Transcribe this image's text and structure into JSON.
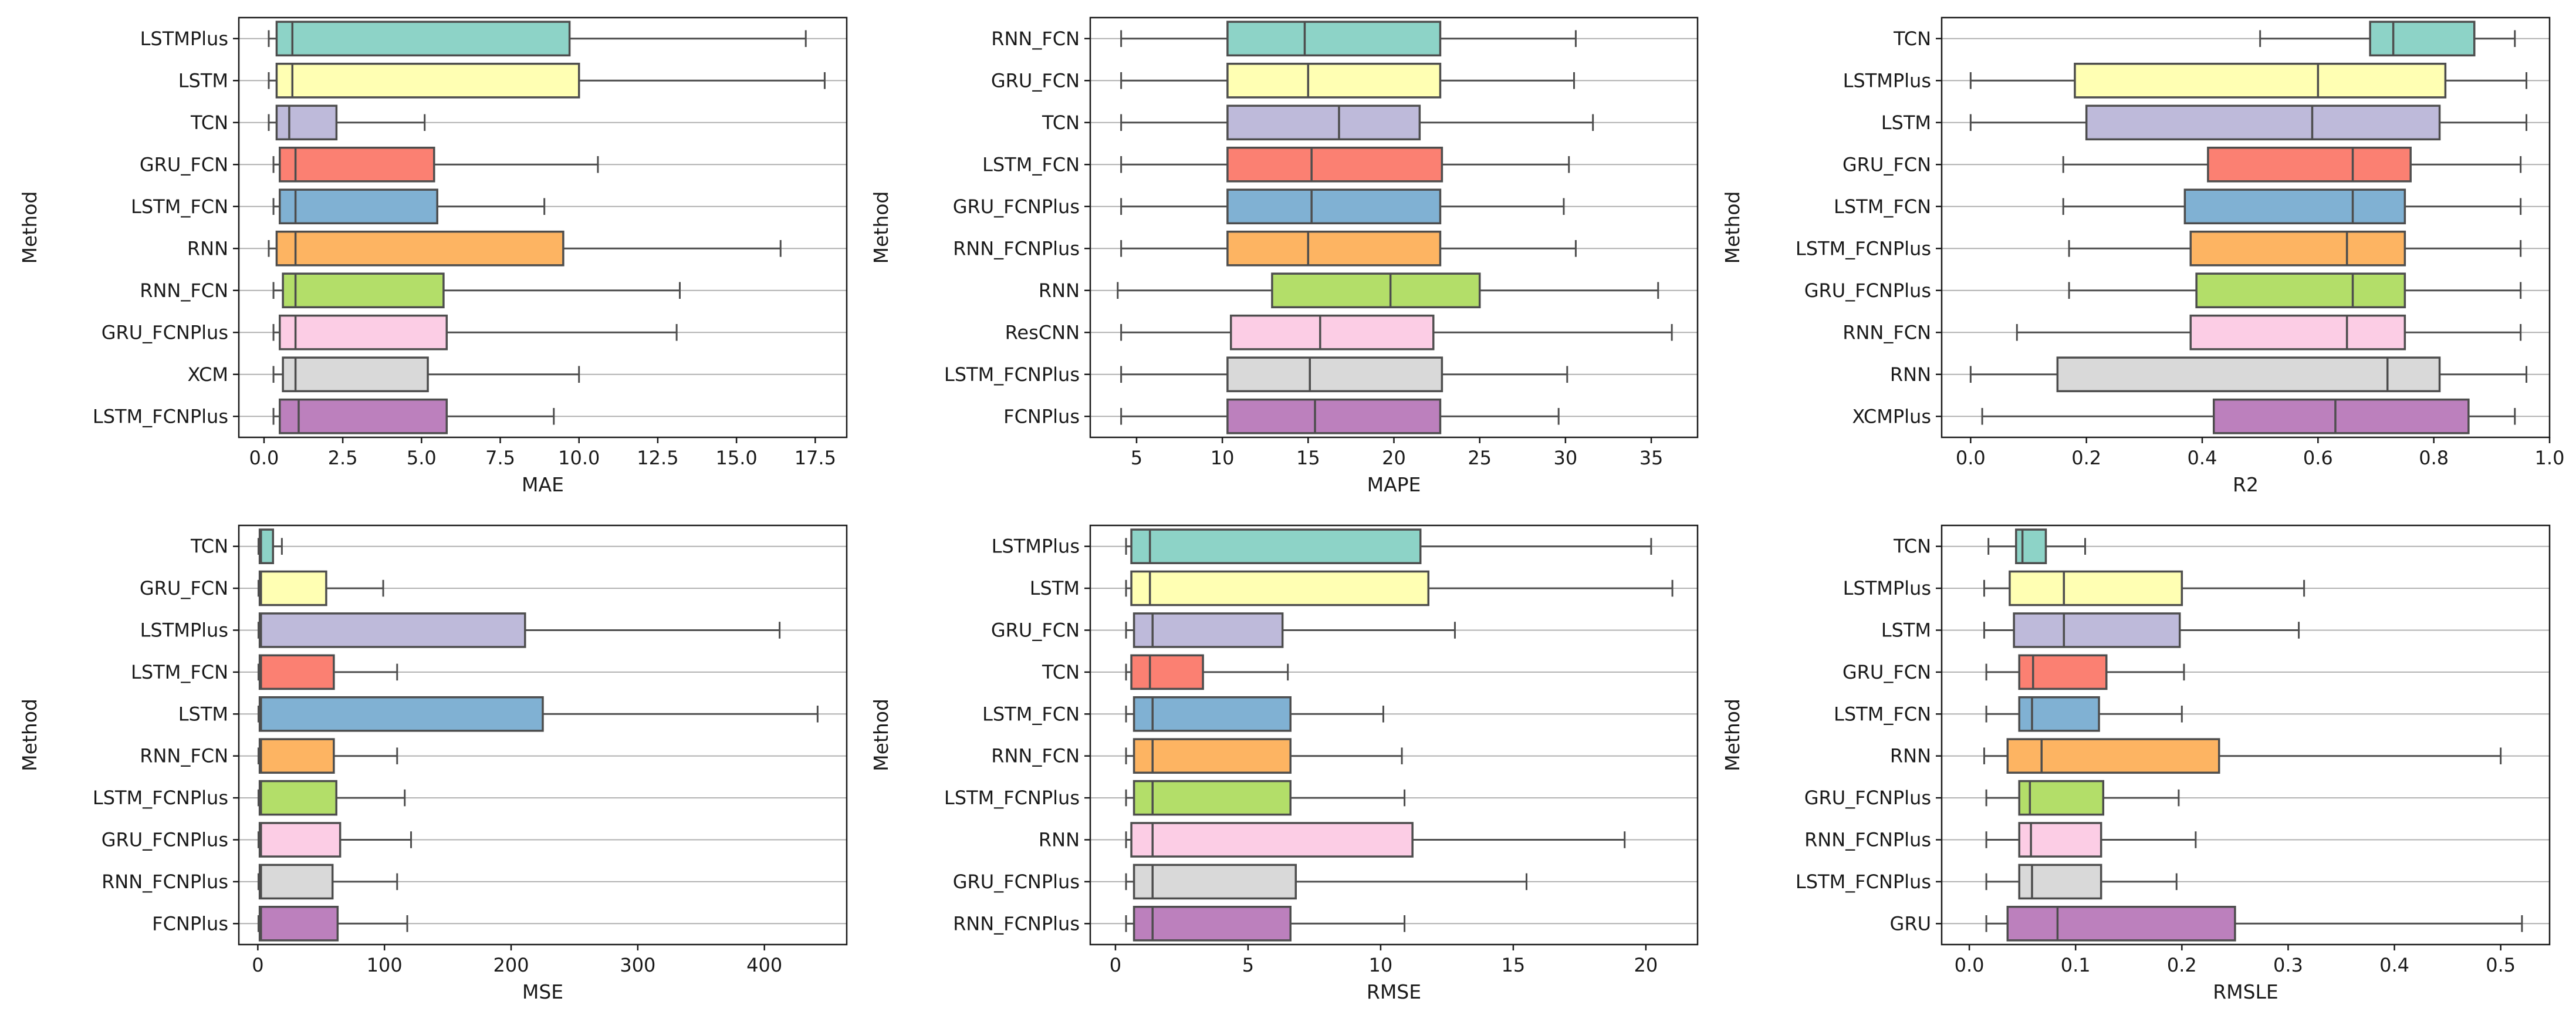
{
  "colors": [
    "#8dd3c7",
    "#ffffb3",
    "#bebada",
    "#fb8072",
    "#80b1d3",
    "#fdb462",
    "#b3de69",
    "#fccde5",
    "#d9d9d9",
    "#bc80bd"
  ],
  "chart_data": [
    {
      "type": "boxplot",
      "orientation": "horizontal",
      "position": "top-left",
      "xlabel": "MAE",
      "ylabel": "Method",
      "xlim": [
        -0.8,
        18.5
      ],
      "xticks": [
        0.0,
        2.5,
        5.0,
        7.5,
        10.0,
        12.5,
        15.0,
        17.5
      ],
      "xtick_labels": [
        "0.0",
        "2.5",
        "5.0",
        "7.5",
        "10.0",
        "12.5",
        "15.0",
        "17.5"
      ],
      "grid_y": true,
      "categories": [
        "LSTMPlus",
        "LSTM",
        "TCN",
        "GRU_FCN",
        "LSTM_FCN",
        "RNN",
        "RNN_FCN",
        "GRU_FCNPlus",
        "XCM",
        "LSTM_FCNPlus"
      ],
      "boxes": [
        {
          "whislo": 0.15,
          "q1": 0.4,
          "med": 0.9,
          "q3": 9.7,
          "whishi": 17.2
        },
        {
          "whislo": 0.15,
          "q1": 0.4,
          "med": 0.9,
          "q3": 10.0,
          "whishi": 17.8
        },
        {
          "whislo": 0.15,
          "q1": 0.4,
          "med": 0.8,
          "q3": 2.3,
          "whishi": 5.1
        },
        {
          "whislo": 0.3,
          "q1": 0.5,
          "med": 1.0,
          "q3": 5.4,
          "whishi": 10.6
        },
        {
          "whislo": 0.3,
          "q1": 0.5,
          "med": 1.0,
          "q3": 5.5,
          "whishi": 8.9
        },
        {
          "whislo": 0.15,
          "q1": 0.4,
          "med": 1.0,
          "q3": 9.5,
          "whishi": 16.4
        },
        {
          "whislo": 0.3,
          "q1": 0.6,
          "med": 1.0,
          "q3": 5.7,
          "whishi": 13.2
        },
        {
          "whislo": 0.3,
          "q1": 0.5,
          "med": 1.0,
          "q3": 5.8,
          "whishi": 13.1
        },
        {
          "whislo": 0.3,
          "q1": 0.6,
          "med": 1.0,
          "q3": 5.2,
          "whishi": 10.0
        },
        {
          "whislo": 0.3,
          "q1": 0.5,
          "med": 1.1,
          "q3": 5.8,
          "whishi": 9.2
        }
      ]
    },
    {
      "type": "boxplot",
      "orientation": "horizontal",
      "position": "top-center",
      "xlabel": "MAPE",
      "ylabel": "Method",
      "xlim": [
        2.3,
        37.7
      ],
      "xticks": [
        5,
        10,
        15,
        20,
        25,
        30,
        35
      ],
      "xtick_labels": [
        "5",
        "10",
        "15",
        "20",
        "25",
        "30",
        "35"
      ],
      "grid_y": true,
      "categories": [
        "RNN_FCN",
        "GRU_FCN",
        "TCN",
        "LSTM_FCN",
        "GRU_FCNPlus",
        "RNN_FCNPlus",
        "RNN",
        "ResCNN",
        "LSTM_FCNPlus",
        "FCNPlus"
      ],
      "boxes": [
        {
          "whislo": 4.1,
          "q1": 10.3,
          "med": 14.8,
          "q3": 22.7,
          "whishi": 30.6
        },
        {
          "whislo": 4.1,
          "q1": 10.3,
          "med": 15.0,
          "q3": 22.7,
          "whishi": 30.5
        },
        {
          "whislo": 4.1,
          "q1": 10.3,
          "med": 16.8,
          "q3": 21.5,
          "whishi": 31.6
        },
        {
          "whislo": 4.1,
          "q1": 10.3,
          "med": 15.2,
          "q3": 22.8,
          "whishi": 30.2
        },
        {
          "whislo": 4.1,
          "q1": 10.3,
          "med": 15.2,
          "q3": 22.7,
          "whishi": 29.9
        },
        {
          "whislo": 4.1,
          "q1": 10.3,
          "med": 15.0,
          "q3": 22.7,
          "whishi": 30.6
        },
        {
          "whislo": 3.9,
          "q1": 12.9,
          "med": 19.8,
          "q3": 25.0,
          "whishi": 35.4
        },
        {
          "whislo": 4.1,
          "q1": 10.5,
          "med": 15.7,
          "q3": 22.3,
          "whishi": 36.2
        },
        {
          "whislo": 4.1,
          "q1": 10.3,
          "med": 15.1,
          "q3": 22.8,
          "whishi": 30.1
        },
        {
          "whislo": 4.1,
          "q1": 10.3,
          "med": 15.4,
          "q3": 22.7,
          "whishi": 29.6
        }
      ]
    },
    {
      "type": "boxplot",
      "orientation": "horizontal",
      "position": "top-right",
      "xlabel": "R2",
      "ylabel": "Method",
      "xlim": [
        -0.05,
        1.0
      ],
      "xticks": [
        0.0,
        0.2,
        0.4,
        0.6,
        0.8,
        1.0
      ],
      "xtick_labels": [
        "0.0",
        "0.2",
        "0.4",
        "0.6",
        "0.8",
        "1.0"
      ],
      "grid_y": true,
      "categories": [
        "TCN",
        "LSTMPlus",
        "LSTM",
        "GRU_FCN",
        "LSTM_FCN",
        "LSTM_FCNPlus",
        "GRU_FCNPlus",
        "RNN_FCN",
        "RNN",
        "XCMPlus"
      ],
      "boxes": [
        {
          "whislo": 0.5,
          "q1": 0.69,
          "med": 0.73,
          "q3": 0.87,
          "whishi": 0.94
        },
        {
          "whislo": 0.0,
          "q1": 0.18,
          "med": 0.6,
          "q3": 0.82,
          "whishi": 0.96
        },
        {
          "whislo": 0.0,
          "q1": 0.2,
          "med": 0.59,
          "q3": 0.81,
          "whishi": 0.96
        },
        {
          "whislo": 0.16,
          "q1": 0.41,
          "med": 0.66,
          "q3": 0.76,
          "whishi": 0.95
        },
        {
          "whislo": 0.16,
          "q1": 0.37,
          "med": 0.66,
          "q3": 0.75,
          "whishi": 0.95
        },
        {
          "whislo": 0.17,
          "q1": 0.38,
          "med": 0.65,
          "q3": 0.75,
          "whishi": 0.95
        },
        {
          "whislo": 0.17,
          "q1": 0.39,
          "med": 0.66,
          "q3": 0.75,
          "whishi": 0.95
        },
        {
          "whislo": 0.08,
          "q1": 0.38,
          "med": 0.65,
          "q3": 0.75,
          "whishi": 0.95
        },
        {
          "whislo": 0.0,
          "q1": 0.15,
          "med": 0.72,
          "q3": 0.81,
          "whishi": 0.96
        },
        {
          "whislo": 0.02,
          "q1": 0.42,
          "med": 0.63,
          "q3": 0.86,
          "whishi": 0.94
        }
      ]
    },
    {
      "type": "boxplot",
      "orientation": "horizontal",
      "position": "bottom-left",
      "xlabel": "MSE",
      "ylabel": "Method",
      "xlim": [
        -15,
        465
      ],
      "xticks": [
        0,
        100,
        200,
        300,
        400
      ],
      "xtick_labels": [
        "0",
        "100",
        "200",
        "300",
        "400"
      ],
      "grid_y": true,
      "categories": [
        "TCN",
        "GRU_FCN",
        "LSTMPlus",
        "LSTM_FCN",
        "LSTM",
        "RNN_FCN",
        "LSTM_FCNPlus",
        "GRU_FCNPlus",
        "RNN_FCNPlus",
        "FCNPlus"
      ],
      "boxes": [
        {
          "whislo": 0.5,
          "q1": 1.5,
          "med": 2.5,
          "q3": 12.0,
          "whishi": 19.0
        },
        {
          "whislo": 0.5,
          "q1": 1.5,
          "med": 2.5,
          "q3": 54.0,
          "whishi": 99.0
        },
        {
          "whislo": 0.5,
          "q1": 1.5,
          "med": 2.5,
          "q3": 211.0,
          "whishi": 412.0
        },
        {
          "whislo": 0.5,
          "q1": 1.5,
          "med": 2.5,
          "q3": 60.0,
          "whishi": 110.0
        },
        {
          "whislo": 0.5,
          "q1": 1.5,
          "med": 2.5,
          "q3": 225.0,
          "whishi": 442.0
        },
        {
          "whislo": 0.5,
          "q1": 1.5,
          "med": 2.5,
          "q3": 60.0,
          "whishi": 110.0
        },
        {
          "whislo": 0.5,
          "q1": 1.5,
          "med": 2.5,
          "q3": 62.0,
          "whishi": 116.0
        },
        {
          "whislo": 0.5,
          "q1": 1.5,
          "med": 2.5,
          "q3": 65.0,
          "whishi": 121.0
        },
        {
          "whislo": 0.5,
          "q1": 1.5,
          "med": 2.5,
          "q3": 59.0,
          "whishi": 110.0
        },
        {
          "whislo": 0.5,
          "q1": 1.5,
          "med": 2.5,
          "q3": 63.0,
          "whishi": 118.0
        }
      ]
    },
    {
      "type": "boxplot",
      "orientation": "horizontal",
      "position": "bottom-center",
      "xlabel": "RMSE",
      "ylabel": "Method",
      "xlim": [
        -0.95,
        21.95
      ],
      "xticks": [
        0,
        5,
        10,
        15,
        20
      ],
      "xtick_labels": [
        "0",
        "5",
        "10",
        "15",
        "20"
      ],
      "grid_y": true,
      "categories": [
        "LSTMPlus",
        "LSTM",
        "GRU_FCN",
        "TCN",
        "LSTM_FCN",
        "RNN_FCN",
        "LSTM_FCNPlus",
        "RNN",
        "GRU_FCNPlus",
        "RNN_FCNPlus"
      ],
      "boxes": [
        {
          "whislo": 0.4,
          "q1": 0.6,
          "med": 1.3,
          "q3": 11.5,
          "whishi": 20.2
        },
        {
          "whislo": 0.4,
          "q1": 0.6,
          "med": 1.3,
          "q3": 11.8,
          "whishi": 21.0
        },
        {
          "whislo": 0.4,
          "q1": 0.7,
          "med": 1.4,
          "q3": 6.3,
          "whishi": 12.8
        },
        {
          "whislo": 0.4,
          "q1": 0.6,
          "med": 1.3,
          "q3": 3.3,
          "whishi": 6.5
        },
        {
          "whislo": 0.4,
          "q1": 0.7,
          "med": 1.4,
          "q3": 6.6,
          "whishi": 10.1
        },
        {
          "whislo": 0.4,
          "q1": 0.7,
          "med": 1.4,
          "q3": 6.6,
          "whishi": 10.8
        },
        {
          "whislo": 0.4,
          "q1": 0.7,
          "med": 1.4,
          "q3": 6.6,
          "whishi": 10.9
        },
        {
          "whislo": 0.4,
          "q1": 0.6,
          "med": 1.4,
          "q3": 11.2,
          "whishi": 19.2
        },
        {
          "whislo": 0.4,
          "q1": 0.7,
          "med": 1.4,
          "q3": 6.8,
          "whishi": 15.5
        },
        {
          "whislo": 0.4,
          "q1": 0.7,
          "med": 1.4,
          "q3": 6.6,
          "whishi": 10.9
        }
      ]
    },
    {
      "type": "boxplot",
      "orientation": "horizontal",
      "position": "bottom-right",
      "xlabel": "RMSLE",
      "ylabel": "Method",
      "xlim": [
        -0.026,
        0.546
      ],
      "xticks": [
        0.0,
        0.1,
        0.2,
        0.3,
        0.4,
        0.5
      ],
      "xtick_labels": [
        "0.0",
        "0.1",
        "0.2",
        "0.3",
        "0.4",
        "0.5"
      ],
      "grid_y": true,
      "categories": [
        "TCN",
        "LSTMPlus",
        "LSTM",
        "GRU_FCN",
        "LSTM_FCN",
        "RNN",
        "GRU_FCNPlus",
        "RNN_FCNPlus",
        "LSTM_FCNPlus",
        "GRU"
      ],
      "boxes": [
        {
          "whislo": 0.018,
          "q1": 0.044,
          "med": 0.05,
          "q3": 0.072,
          "whishi": 0.109
        },
        {
          "whislo": 0.014,
          "q1": 0.038,
          "med": 0.089,
          "q3": 0.2,
          "whishi": 0.315
        },
        {
          "whislo": 0.014,
          "q1": 0.042,
          "med": 0.089,
          "q3": 0.198,
          "whishi": 0.31
        },
        {
          "whislo": 0.016,
          "q1": 0.047,
          "med": 0.06,
          "q3": 0.129,
          "whishi": 0.202
        },
        {
          "whislo": 0.016,
          "q1": 0.047,
          "med": 0.059,
          "q3": 0.122,
          "whishi": 0.2
        },
        {
          "whislo": 0.014,
          "q1": 0.036,
          "med": 0.068,
          "q3": 0.235,
          "whishi": 0.5
        },
        {
          "whislo": 0.016,
          "q1": 0.047,
          "med": 0.057,
          "q3": 0.126,
          "whishi": 0.197
        },
        {
          "whislo": 0.016,
          "q1": 0.047,
          "med": 0.058,
          "q3": 0.124,
          "whishi": 0.213
        },
        {
          "whislo": 0.016,
          "q1": 0.047,
          "med": 0.059,
          "q3": 0.124,
          "whishi": 0.195
        },
        {
          "whislo": 0.016,
          "q1": 0.036,
          "med": 0.083,
          "q3": 0.25,
          "whishi": 0.52
        }
      ]
    }
  ]
}
